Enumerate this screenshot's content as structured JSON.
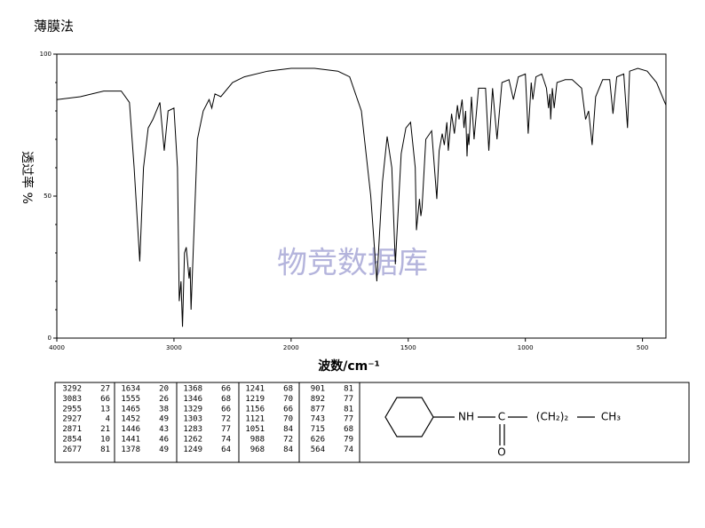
{
  "chart_data": {
    "type": "line",
    "title": "薄膜法",
    "x_label": "波数/cm⁻¹",
    "y_label": "透过率 %",
    "watermark": "物竞数据库",
    "xlim": [
      4000,
      400
    ],
    "xticks": [
      4000,
      3000,
      2000,
      1500,
      1000,
      500
    ],
    "ylim": [
      0,
      100
    ],
    "yticks": [
      0,
      50,
      100
    ],
    "yminor_ticks": [
      10,
      20,
      30,
      40,
      60,
      70,
      80,
      90
    ],
    "color": "#000000",
    "x": [
      4000,
      3800,
      3600,
      3450,
      3380,
      3340,
      3292,
      3260,
      3220,
      3180,
      3120,
      3083,
      3050,
      3000,
      2970,
      2955,
      2940,
      2927,
      2910,
      2895,
      2871,
      2862,
      2854,
      2800,
      2750,
      2700,
      2677,
      2650,
      2600,
      2500,
      2400,
      2200,
      2000,
      1900,
      1800,
      1750,
      1700,
      1660,
      1634,
      1610,
      1590,
      1570,
      1555,
      1530,
      1510,
      1490,
      1470,
      1465,
      1452,
      1446,
      1441,
      1425,
      1400,
      1378,
      1368,
      1355,
      1346,
      1335,
      1329,
      1315,
      1303,
      1290,
      1283,
      1270,
      1262,
      1255,
      1249,
      1245,
      1241,
      1230,
      1219,
      1200,
      1170,
      1156,
      1140,
      1121,
      1100,
      1070,
      1051,
      1030,
      1000,
      988,
      975,
      968,
      955,
      930,
      910,
      901,
      895,
      892,
      885,
      877,
      865,
      830,
      800,
      760,
      743,
      730,
      715,
      700,
      670,
      640,
      626,
      610,
      580,
      564,
      555,
      520,
      480,
      440,
      400
    ],
    "values": [
      84,
      85,
      87,
      87,
      83,
      60,
      27,
      60,
      74,
      77,
      83,
      66,
      80,
      81,
      60,
      13,
      20,
      4,
      30,
      32,
      21,
      25,
      10,
      70,
      80,
      84,
      81,
      86,
      85,
      90,
      92,
      94,
      95,
      95,
      94,
      92,
      80,
      50,
      20,
      55,
      71,
      60,
      26,
      65,
      74,
      76,
      60,
      38,
      49,
      43,
      46,
      70,
      73,
      49,
      66,
      72,
      68,
      76,
      66,
      79,
      72,
      82,
      77,
      84,
      74,
      80,
      64,
      72,
      68,
      85,
      70,
      88,
      88,
      66,
      88,
      70,
      90,
      91,
      84,
      92,
      93,
      72,
      90,
      84,
      92,
      93,
      88,
      81,
      86,
      77,
      88,
      81,
      90,
      91,
      91,
      88,
      77,
      80,
      68,
      85,
      91,
      91,
      79,
      92,
      93,
      74,
      94,
      95,
      94,
      90,
      82
    ],
    "peak_table": [
      [
        [
          3292,
          27
        ],
        [
          3083,
          66
        ],
        [
          2955,
          13
        ],
        [
          2927,
          4
        ],
        [
          2871,
          21
        ],
        [
          2854,
          10
        ],
        [
          2677,
          81
        ]
      ],
      [
        [
          1634,
          20
        ],
        [
          1555,
          26
        ],
        [
          1465,
          38
        ],
        [
          1452,
          49
        ],
        [
          1446,
          43
        ],
        [
          1441,
          46
        ],
        [
          1378,
          49
        ]
      ],
      [
        [
          1368,
          66
        ],
        [
          1346,
          68
        ],
        [
          1329,
          66
        ],
        [
          1303,
          72
        ],
        [
          1283,
          77
        ],
        [
          1262,
          74
        ],
        [
          1249,
          64
        ]
      ],
      [
        [
          1241,
          68
        ],
        [
          1219,
          70
        ],
        [
          1156,
          66
        ],
        [
          1121,
          70
        ],
        [
          1051,
          84
        ],
        [
          988,
          72
        ],
        [
          968,
          84
        ]
      ],
      [
        [
          901,
          81
        ],
        [
          892,
          77
        ],
        [
          877,
          81
        ],
        [
          743,
          77
        ],
        [
          715,
          68
        ],
        [
          626,
          79
        ],
        [
          564,
          74
        ]
      ]
    ],
    "structure": {
      "nh": "NH",
      "c": "C",
      "o": "O",
      "chain": "(CH₂)₂",
      "end": "CH₃"
    }
  }
}
